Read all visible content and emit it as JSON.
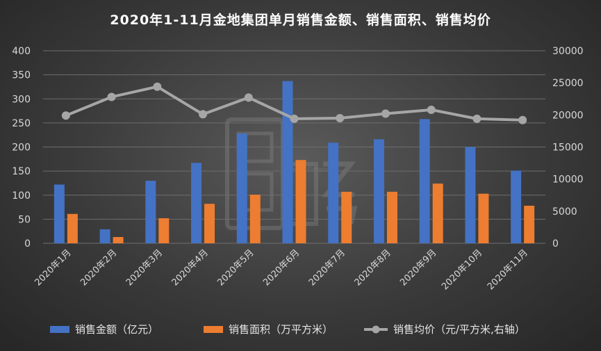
{
  "chart_data": {
    "type": "bar",
    "title": "2020年1-11月金地集团单月销售金额、销售面积、销售均价",
    "categories": [
      "2020年1月",
      "2020年2月",
      "2020年3月",
      "2020年4月",
      "2020年5月",
      "2020年6月",
      "2020年7月",
      "2020年8月",
      "2020年9月",
      "2020年10月",
      "2020年11月"
    ],
    "series": [
      {
        "name": "销售金额（亿元）",
        "type": "bar",
        "axis": "left",
        "color": "#4472c4",
        "values": [
          122,
          29,
          130,
          167,
          228,
          337,
          209,
          216,
          258,
          200,
          151
        ]
      },
      {
        "name": "销售面积（万平方米）",
        "type": "bar",
        "axis": "left",
        "color": "#ed7d31",
        "values": [
          61,
          13,
          52,
          82,
          101,
          173,
          107,
          107,
          124,
          103,
          78
        ]
      },
      {
        "name": "销售均价（元/平方米,右轴）",
        "type": "line",
        "axis": "right",
        "color": "#a6a6a6",
        "values": [
          19900,
          22800,
          24400,
          20100,
          22700,
          19400,
          19500,
          20200,
          20800,
          19400,
          19200
        ]
      }
    ],
    "y_left": {
      "min": 0,
      "max": 400,
      "ticks": [
        0,
        50,
        100,
        150,
        200,
        250,
        300,
        350,
        400
      ]
    },
    "y_right": {
      "min": 0,
      "max": 30000,
      "ticks": [
        0,
        5000,
        10000,
        15000,
        20000,
        25000,
        30000
      ]
    },
    "grid": true,
    "legend": "bottom"
  },
  "watermark": {
    "brand": "Bread Finance"
  }
}
